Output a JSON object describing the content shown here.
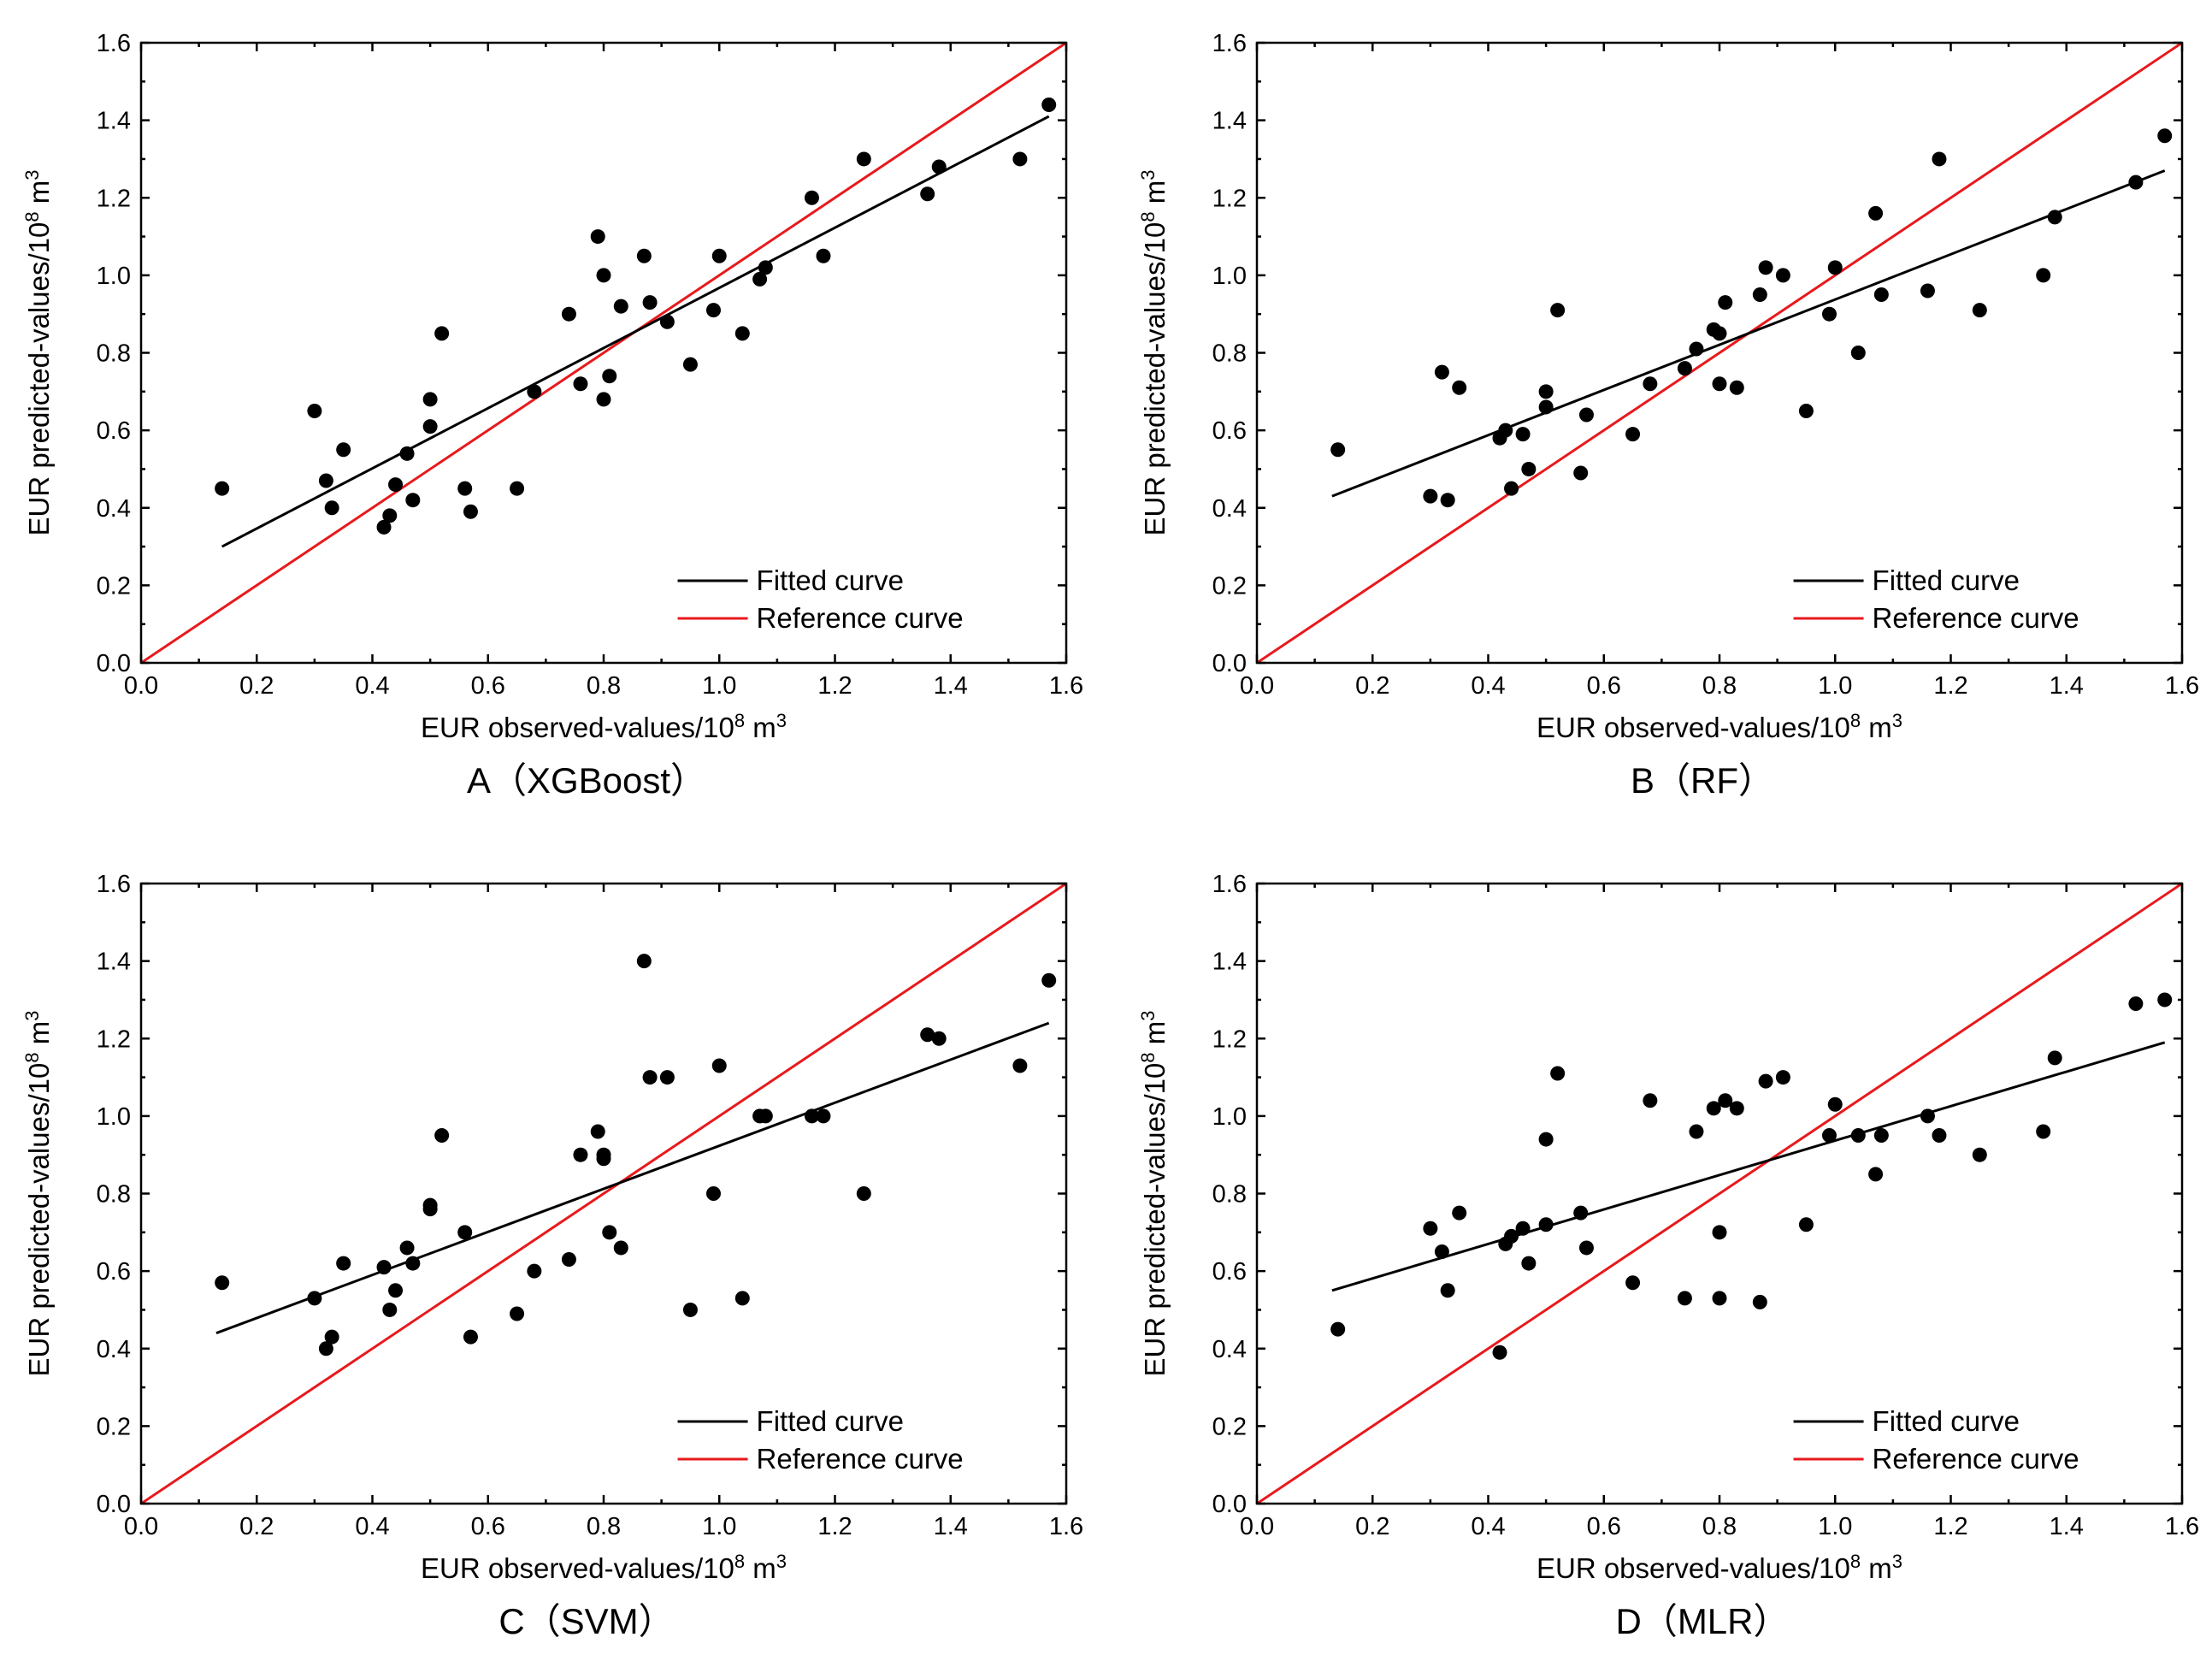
{
  "chart_data": [
    {
      "type": "scatter",
      "caption": "A（XGBoost）",
      "xlabel": "EUR observed-values/10",
      "ylabel": "EUR predicted-values/10",
      "unit_power": "8",
      "unit_m": " m",
      "unit_cube": "3",
      "xlim": [
        0,
        1.6
      ],
      "ylim": [
        0,
        1.6
      ],
      "xticks": [
        "0.0",
        "0.2",
        "0.4",
        "0.6",
        "0.8",
        "1.0",
        "1.2",
        "1.4",
        "1.6"
      ],
      "yticks": [
        "0.0",
        "0.2",
        "0.4",
        "0.6",
        "0.8",
        "1.0",
        "1.2",
        "1.4",
        "1.6"
      ],
      "legend": [
        "Fitted curve",
        "Reference curve"
      ],
      "fitted_line": [
        [
          0.14,
          0.3
        ],
        [
          1.57,
          1.41
        ]
      ],
      "reference_line": [
        [
          0,
          0
        ],
        [
          1.6,
          1.6
        ]
      ],
      "colors": {
        "points": "#000000",
        "fitted": "#000000",
        "reference": "#e8191c"
      },
      "points": [
        [
          0.14,
          0.45
        ],
        [
          0.3,
          0.65
        ],
        [
          0.32,
          0.47
        ],
        [
          0.33,
          0.4
        ],
        [
          0.35,
          0.55
        ],
        [
          0.42,
          0.35
        ],
        [
          0.43,
          0.38
        ],
        [
          0.44,
          0.46
        ],
        [
          0.46,
          0.54
        ],
        [
          0.47,
          0.42
        ],
        [
          0.5,
          0.68
        ],
        [
          0.5,
          0.61
        ],
        [
          0.52,
          0.85
        ],
        [
          0.56,
          0.45
        ],
        [
          0.57,
          0.39
        ],
        [
          0.65,
          0.45
        ],
        [
          0.68,
          0.7
        ],
        [
          0.74,
          0.9
        ],
        [
          0.76,
          0.72
        ],
        [
          0.79,
          1.1
        ],
        [
          0.8,
          1.0
        ],
        [
          0.8,
          0.68
        ],
        [
          0.81,
          0.74
        ],
        [
          0.83,
          0.92
        ],
        [
          0.87,
          1.05
        ],
        [
          0.88,
          0.93
        ],
        [
          0.91,
          0.88
        ],
        [
          0.95,
          0.77
        ],
        [
          0.99,
          0.91
        ],
        [
          1.0,
          1.05
        ],
        [
          1.04,
          0.85
        ],
        [
          1.07,
          0.99
        ],
        [
          1.08,
          1.02
        ],
        [
          1.16,
          1.2
        ],
        [
          1.18,
          1.05
        ],
        [
          1.25,
          1.3
        ],
        [
          1.36,
          1.21
        ],
        [
          1.38,
          1.28
        ],
        [
          1.52,
          1.3
        ],
        [
          1.57,
          1.44
        ]
      ]
    },
    {
      "type": "scatter",
      "caption": "B（RF）",
      "xlabel": "EUR observed-values/10",
      "ylabel": "EUR predicted-values/10",
      "unit_power": "8",
      "unit_m": " m",
      "unit_cube": "3",
      "xlim": [
        0,
        1.6
      ],
      "ylim": [
        0,
        1.6
      ],
      "xticks": [
        "0.0",
        "0.2",
        "0.4",
        "0.6",
        "0.8",
        "1.0",
        "1.2",
        "1.4",
        "1.6"
      ],
      "yticks": [
        "0.0",
        "0.2",
        "0.4",
        "0.6",
        "0.8",
        "1.0",
        "1.2",
        "1.4",
        "1.6"
      ],
      "legend": [
        "Fitted curve",
        "Reference curve"
      ],
      "fitted_line": [
        [
          0.13,
          0.43
        ],
        [
          1.57,
          1.27
        ]
      ],
      "reference_line": [
        [
          0,
          0
        ],
        [
          1.6,
          1.6
        ]
      ],
      "colors": {
        "points": "#000000",
        "fitted": "#000000",
        "reference": "#e8191c"
      },
      "points": [
        [
          0.14,
          0.55
        ],
        [
          0.3,
          0.43
        ],
        [
          0.32,
          0.75
        ],
        [
          0.33,
          0.42
        ],
        [
          0.35,
          0.71
        ],
        [
          0.42,
          0.58
        ],
        [
          0.43,
          0.6
        ],
        [
          0.44,
          0.45
        ],
        [
          0.46,
          0.59
        ],
        [
          0.47,
          0.5
        ],
        [
          0.5,
          0.7
        ],
        [
          0.5,
          0.66
        ],
        [
          0.52,
          0.91
        ],
        [
          0.56,
          0.49
        ],
        [
          0.57,
          0.64
        ],
        [
          0.65,
          0.59
        ],
        [
          0.68,
          0.72
        ],
        [
          0.74,
          0.76
        ],
        [
          0.76,
          0.81
        ],
        [
          0.79,
          0.86
        ],
        [
          0.8,
          0.85
        ],
        [
          0.8,
          0.72
        ],
        [
          0.81,
          0.93
        ],
        [
          0.83,
          0.71
        ],
        [
          0.87,
          0.95
        ],
        [
          0.88,
          1.02
        ],
        [
          0.91,
          1.0
        ],
        [
          0.95,
          0.65
        ],
        [
          0.99,
          0.9
        ],
        [
          1.0,
          1.02
        ],
        [
          1.04,
          0.8
        ],
        [
          1.07,
          1.16
        ],
        [
          1.08,
          0.95
        ],
        [
          1.16,
          0.96
        ],
        [
          1.18,
          1.3
        ],
        [
          1.25,
          0.91
        ],
        [
          1.36,
          1.0
        ],
        [
          1.38,
          1.15
        ],
        [
          1.52,
          1.24
        ],
        [
          1.57,
          1.36
        ]
      ]
    },
    {
      "type": "scatter",
      "caption": "C（SVM）",
      "xlabel": "EUR observed-values/10",
      "ylabel": "EUR predicted-values/10",
      "unit_power": "8",
      "unit_m": " m",
      "unit_cube": "3",
      "xlim": [
        0,
        1.6
      ],
      "ylim": [
        0,
        1.6
      ],
      "xticks": [
        "0.0",
        "0.2",
        "0.4",
        "0.6",
        "0.8",
        "1.0",
        "1.2",
        "1.4",
        "1.6"
      ],
      "yticks": [
        "0.0",
        "0.2",
        "0.4",
        "0.6",
        "0.8",
        "1.0",
        "1.2",
        "1.4",
        "1.6"
      ],
      "legend": [
        "Fitted curve",
        "Reference curve"
      ],
      "fitted_line": [
        [
          0.13,
          0.44
        ],
        [
          1.57,
          1.24
        ]
      ],
      "reference_line": [
        [
          0,
          0
        ],
        [
          1.6,
          1.6
        ]
      ],
      "colors": {
        "points": "#000000",
        "fitted": "#000000",
        "reference": "#e8191c"
      },
      "points": [
        [
          0.14,
          0.57
        ],
        [
          0.3,
          0.53
        ],
        [
          0.32,
          0.4
        ],
        [
          0.33,
          0.43
        ],
        [
          0.35,
          0.62
        ],
        [
          0.42,
          0.61
        ],
        [
          0.43,
          0.5
        ],
        [
          0.44,
          0.55
        ],
        [
          0.46,
          0.66
        ],
        [
          0.47,
          0.62
        ],
        [
          0.5,
          0.77
        ],
        [
          0.5,
          0.76
        ],
        [
          0.52,
          0.95
        ],
        [
          0.56,
          0.7
        ],
        [
          0.57,
          0.43
        ],
        [
          0.65,
          0.49
        ],
        [
          0.68,
          0.6
        ],
        [
          0.74,
          0.63
        ],
        [
          0.76,
          0.9
        ],
        [
          0.79,
          0.96
        ],
        [
          0.8,
          0.9
        ],
        [
          0.8,
          0.89
        ],
        [
          0.81,
          0.7
        ],
        [
          0.83,
          0.66
        ],
        [
          0.87,
          1.4
        ],
        [
          0.88,
          1.1
        ],
        [
          0.91,
          1.1
        ],
        [
          0.95,
          0.5
        ],
        [
          0.99,
          0.8
        ],
        [
          1.0,
          1.13
        ],
        [
          1.04,
          0.53
        ],
        [
          1.07,
          1.0
        ],
        [
          1.08,
          1.0
        ],
        [
          1.16,
          1.0
        ],
        [
          1.18,
          1.0
        ],
        [
          1.25,
          0.8
        ],
        [
          1.36,
          1.21
        ],
        [
          1.38,
          1.2
        ],
        [
          1.52,
          1.13
        ],
        [
          1.57,
          1.35
        ]
      ]
    },
    {
      "type": "scatter",
      "caption": "D（MLR）",
      "xlabel": "EUR observed-values/10",
      "ylabel": "EUR predicted-values/10",
      "unit_power": "8",
      "unit_m": " m",
      "unit_cube": "3",
      "xlim": [
        0,
        1.6
      ],
      "ylim": [
        0,
        1.6
      ],
      "xticks": [
        "0.0",
        "0.2",
        "0.4",
        "0.6",
        "0.8",
        "1.0",
        "1.2",
        "1.4",
        "1.6"
      ],
      "yticks": [
        "0.0",
        "0.2",
        "0.4",
        "0.6",
        "0.8",
        "1.0",
        "1.2",
        "1.4",
        "1.6"
      ],
      "legend": [
        "Fitted curve",
        "Reference curve"
      ],
      "fitted_line": [
        [
          0.13,
          0.55
        ],
        [
          1.57,
          1.19
        ]
      ],
      "reference_line": [
        [
          0,
          0
        ],
        [
          1.6,
          1.6
        ]
      ],
      "colors": {
        "points": "#000000",
        "fitted": "#000000",
        "reference": "#e8191c"
      },
      "points": [
        [
          0.14,
          0.45
        ],
        [
          0.3,
          0.71
        ],
        [
          0.32,
          0.65
        ],
        [
          0.33,
          0.55
        ],
        [
          0.35,
          0.75
        ],
        [
          0.42,
          0.39
        ],
        [
          0.43,
          0.67
        ],
        [
          0.44,
          0.69
        ],
        [
          0.46,
          0.71
        ],
        [
          0.47,
          0.62
        ],
        [
          0.5,
          0.94
        ],
        [
          0.5,
          0.72
        ],
        [
          0.52,
          1.11
        ],
        [
          0.56,
          0.75
        ],
        [
          0.57,
          0.66
        ],
        [
          0.65,
          0.57
        ],
        [
          0.68,
          1.04
        ],
        [
          0.74,
          0.53
        ],
        [
          0.76,
          0.96
        ],
        [
          0.79,
          1.02
        ],
        [
          0.8,
          0.7
        ],
        [
          0.8,
          0.53
        ],
        [
          0.81,
          1.04
        ],
        [
          0.83,
          1.02
        ],
        [
          0.87,
          0.52
        ],
        [
          0.88,
          1.09
        ],
        [
          0.91,
          1.1
        ],
        [
          0.95,
          0.72
        ],
        [
          0.99,
          0.95
        ],
        [
          1.0,
          1.03
        ],
        [
          1.04,
          0.95
        ],
        [
          1.07,
          0.85
        ],
        [
          1.08,
          0.95
        ],
        [
          1.16,
          1.0
        ],
        [
          1.18,
          0.95
        ],
        [
          1.25,
          0.9
        ],
        [
          1.36,
          0.96
        ],
        [
          1.38,
          1.15
        ],
        [
          1.52,
          1.29
        ],
        [
          1.57,
          1.3
        ]
      ]
    }
  ]
}
